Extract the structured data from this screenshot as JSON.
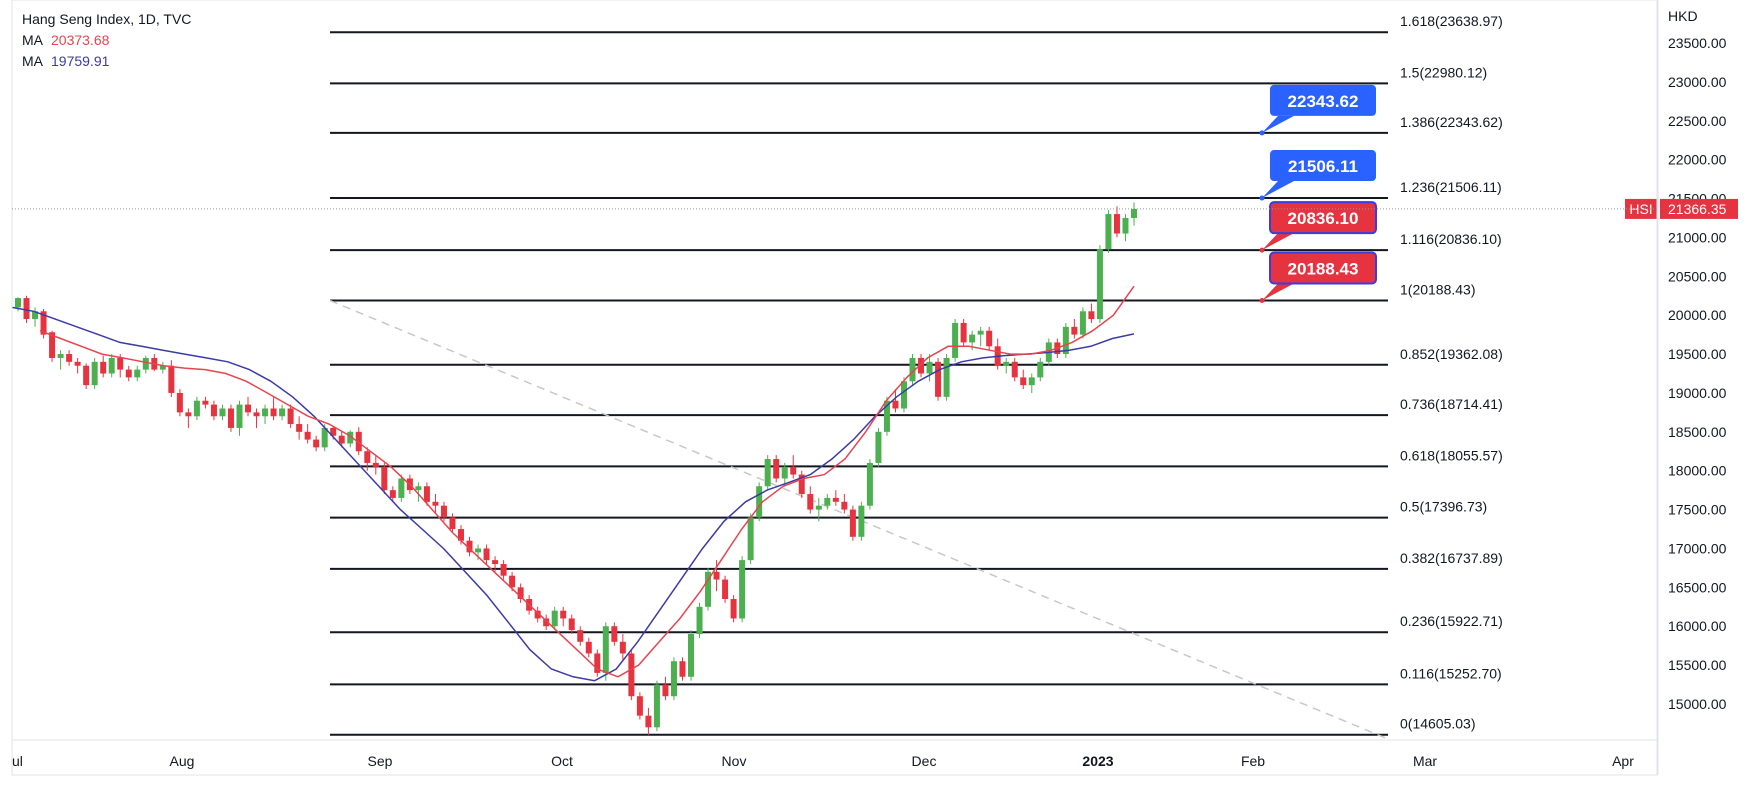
{
  "legend": {
    "title": "Hang Seng Index, 1D, TVC",
    "ma1_label": "MA",
    "ma1_value": "20373.68",
    "ma2_label": "MA",
    "ma2_value": "19759.91"
  },
  "colors": {
    "up": "#4caf50",
    "down": "#e5333f",
    "ma_fast": "#e5454f",
    "ma_slow": "#3b3ba8",
    "fib_line": "#131722",
    "callout_blue": "#2962ff",
    "callout_red": "#e5333f",
    "trend_dash": "#c8c8c8"
  },
  "axis": {
    "currency": "HKD",
    "current_symbol": "HSI",
    "current_price": "21366.35"
  },
  "chart_data": {
    "type": "candlestick",
    "title": "Hang Seng Index, 1D, TVC",
    "ylabel": "HKD",
    "ylim": [
      14500,
      23900
    ],
    "y_ticks": [
      "15000.00",
      "15500.00",
      "16000.00",
      "16500.00",
      "17000.00",
      "17500.00",
      "18000.00",
      "18500.00",
      "19000.00",
      "19500.00",
      "20000.00",
      "20500.00",
      "21000.00",
      "21500.00",
      "22000.00",
      "22500.00",
      "23000.00",
      "23500.00"
    ],
    "x_ticks": [
      "ul",
      "Aug",
      "Sep",
      "Oct",
      "Nov",
      "Dec",
      "2023",
      "Feb",
      "Mar",
      "Apr"
    ],
    "fib_levels": [
      {
        "label": "1.618(23638.97)",
        "value": 23638.97
      },
      {
        "label": "1.5(22980.12)",
        "value": 22980.12
      },
      {
        "label": "1.386(22343.62)",
        "value": 22343.62
      },
      {
        "label": "1.236(21506.11)",
        "value": 21506.11
      },
      {
        "label": "1.116(20836.10)",
        "value": 20836.1
      },
      {
        "label": "1(20188.43)",
        "value": 20188.43
      },
      {
        "label": "0.852(19362.08)",
        "value": 19362.08
      },
      {
        "label": "0.736(18714.41)",
        "value": 18714.41
      },
      {
        "label": "0.618(18055.57)",
        "value": 18055.57
      },
      {
        "label": "0.5(17396.73)",
        "value": 17396.73
      },
      {
        "label": "0.382(16737.89)",
        "value": 16737.89
      },
      {
        "label": "0.236(15922.71)",
        "value": 15922.71
      },
      {
        "label": "0.116(15252.70)",
        "value": 15252.7
      },
      {
        "label": "0(14605.03)",
        "value": 14605.03
      }
    ],
    "callouts": [
      {
        "text": "22343.62",
        "value": 22343.62,
        "color": "blue"
      },
      {
        "text": "21506.11",
        "value": 21506.11,
        "color": "blue"
      },
      {
        "text": "20836.10",
        "value": 20836.1,
        "color": "red"
      },
      {
        "text": "20188.43",
        "value": 20188.43,
        "color": "red"
      }
    ],
    "candles": [
      [
        20100,
        20230,
        20050,
        20220
      ],
      [
        20220,
        20250,
        19900,
        19950
      ],
      [
        19950,
        20100,
        19850,
        20050
      ],
      [
        20050,
        20080,
        19700,
        19750
      ],
      [
        19780,
        19800,
        19400,
        19450
      ],
      [
        19450,
        19550,
        19300,
        19500
      ],
      [
        19500,
        19550,
        19350,
        19400
      ],
      [
        19400,
        19450,
        19250,
        19350
      ],
      [
        19350,
        19380,
        19050,
        19100
      ],
      [
        19100,
        19450,
        19050,
        19400
      ],
      [
        19400,
        19480,
        19200,
        19250
      ],
      [
        19250,
        19500,
        19200,
        19450
      ],
      [
        19450,
        19500,
        19200,
        19300
      ],
      [
        19300,
        19350,
        19150,
        19200
      ],
      [
        19200,
        19350,
        19150,
        19300
      ],
      [
        19300,
        19480,
        19250,
        19450
      ],
      [
        19450,
        19500,
        19280,
        19300
      ],
      [
        19300,
        19400,
        19250,
        19350
      ],
      [
        19350,
        19420,
        18950,
        19000
      ],
      [
        19000,
        19050,
        18700,
        18750
      ],
      [
        18750,
        18800,
        18550,
        18700
      ],
      [
        18700,
        18950,
        18650,
        18900
      ],
      [
        18900,
        18950,
        18800,
        18850
      ],
      [
        18850,
        18900,
        18650,
        18700
      ],
      [
        18700,
        18850,
        18650,
        18800
      ],
      [
        18800,
        18850,
        18500,
        18550
      ],
      [
        18550,
        18900,
        18450,
        18850
      ],
      [
        18850,
        18950,
        18700,
        18750
      ],
      [
        18750,
        18800,
        18550,
        18700
      ],
      [
        18700,
        18850,
        18600,
        18800
      ],
      [
        18800,
        18950,
        18650,
        18700
      ],
      [
        18700,
        18850,
        18650,
        18800
      ],
      [
        18800,
        18850,
        18550,
        18600
      ],
      [
        18600,
        18700,
        18400,
        18500
      ],
      [
        18500,
        18600,
        18350,
        18400
      ],
      [
        18400,
        18450,
        18250,
        18300
      ],
      [
        18300,
        18600,
        18250,
        18550
      ],
      [
        18550,
        18570,
        18400,
        18450
      ],
      [
        18450,
        18500,
        18300,
        18350
      ],
      [
        18350,
        18520,
        18300,
        18500
      ],
      [
        18500,
        18560,
        18200,
        18250
      ],
      [
        18250,
        18300,
        18000,
        18100
      ],
      [
        18100,
        18200,
        17950,
        18050
      ],
      [
        18050,
        18100,
        17700,
        17750
      ],
      [
        17750,
        17800,
        17600,
        17650
      ],
      [
        17650,
        17950,
        17600,
        17900
      ],
      [
        17900,
        17950,
        17700,
        17750
      ],
      [
        17750,
        17850,
        17600,
        17800
      ],
      [
        17800,
        17850,
        17550,
        17600
      ],
      [
        17600,
        17700,
        17450,
        17550
      ],
      [
        17550,
        17600,
        17350,
        17400
      ],
      [
        17400,
        17450,
        17200,
        17250
      ],
      [
        17250,
        17300,
        17050,
        17100
      ],
      [
        17100,
        17150,
        16900,
        16950
      ],
      [
        16950,
        17050,
        16850,
        17000
      ],
      [
        17000,
        17050,
        16800,
        16850
      ],
      [
        16850,
        16900,
        16700,
        16800
      ],
      [
        16800,
        16850,
        16600,
        16650
      ],
      [
        16650,
        16700,
        16450,
        16500
      ],
      [
        16500,
        16550,
        16300,
        16350
      ],
      [
        16350,
        16400,
        16150,
        16200
      ],
      [
        16200,
        16250,
        16050,
        16100
      ],
      [
        16100,
        16150,
        15950,
        16000
      ],
      [
        16000,
        16250,
        15950,
        16200
      ],
      [
        16200,
        16250,
        16000,
        16100
      ],
      [
        16100,
        16150,
        15900,
        15950
      ],
      [
        15950,
        16000,
        15750,
        15800
      ],
      [
        15800,
        15850,
        15600,
        15650
      ],
      [
        15650,
        15700,
        15350,
        15400
      ],
      [
        15400,
        16050,
        15300,
        16000
      ],
      [
        16000,
        16050,
        15750,
        15800
      ],
      [
        15800,
        15900,
        15550,
        15650
      ],
      [
        15650,
        15700,
        15050,
        15100
      ],
      [
        15100,
        15150,
        14800,
        14850
      ],
      [
        14850,
        14950,
        14600,
        14700
      ],
      [
        14700,
        15300,
        14650,
        15250
      ],
      [
        15250,
        15350,
        15050,
        15100
      ],
      [
        15100,
        15600,
        15050,
        15550
      ],
      [
        15550,
        15600,
        15300,
        15350
      ],
      [
        15350,
        15950,
        15300,
        15900
      ],
      [
        15900,
        16300,
        15850,
        16250
      ],
      [
        16250,
        16750,
        16200,
        16700
      ],
      [
        16700,
        16850,
        16450,
        16600
      ],
      [
        16600,
        16650,
        16300,
        16350
      ],
      [
        16350,
        16400,
        16050,
        16100
      ],
      [
        16100,
        16900,
        16050,
        16850
      ],
      [
        16850,
        17450,
        16800,
        17400
      ],
      [
        17400,
        17850,
        17350,
        17800
      ],
      [
        17800,
        18200,
        17750,
        18150
      ],
      [
        18150,
        18200,
        17850,
        17900
      ],
      [
        17900,
        18100,
        17800,
        18050
      ],
      [
        18050,
        18200,
        17900,
        17950
      ],
      [
        17950,
        18000,
        17650,
        17700
      ],
      [
        17700,
        17800,
        17450,
        17500
      ],
      [
        17500,
        17650,
        17350,
        17550
      ],
      [
        17550,
        17700,
        17500,
        17650
      ],
      [
        17650,
        17750,
        17550,
        17600
      ],
      [
        17600,
        17700,
        17450,
        17500
      ],
      [
        17500,
        17550,
        17100,
        17150
      ],
      [
        17150,
        17600,
        17100,
        17550
      ],
      [
        17550,
        18150,
        17500,
        18100
      ],
      [
        18100,
        18550,
        18050,
        18500
      ],
      [
        18500,
        18950,
        18450,
        18900
      ],
      [
        18900,
        19050,
        18750,
        18800
      ],
      [
        18800,
        19200,
        18750,
        19150
      ],
      [
        19150,
        19500,
        19100,
        19450
      ],
      [
        19450,
        19500,
        19200,
        19250
      ],
      [
        19250,
        19500,
        19150,
        19400
      ],
      [
        19400,
        19450,
        18900,
        18950
      ],
      [
        18950,
        19500,
        18900,
        19450
      ],
      [
        19450,
        19950,
        19400,
        19900
      ],
      [
        19900,
        19950,
        19600,
        19650
      ],
      [
        19650,
        19800,
        19550,
        19750
      ],
      [
        19750,
        19850,
        19600,
        19800
      ],
      [
        19800,
        19850,
        19550,
        19600
      ],
      [
        19600,
        19700,
        19300,
        19350
      ],
      [
        19350,
        19450,
        19250,
        19400
      ],
      [
        19400,
        19450,
        19150,
        19200
      ],
      [
        19200,
        19300,
        19050,
        19100
      ],
      [
        19100,
        19250,
        19000,
        19200
      ],
      [
        19200,
        19450,
        19150,
        19400
      ],
      [
        19400,
        19700,
        19350,
        19650
      ],
      [
        19650,
        19700,
        19450,
        19500
      ],
      [
        19500,
        19900,
        19450,
        19850
      ],
      [
        19850,
        19950,
        19700,
        19750
      ],
      [
        19750,
        20100,
        19700,
        20050
      ],
      [
        20050,
        20150,
        19900,
        19950
      ],
      [
        19950,
        20900,
        19900,
        20850
      ],
      [
        20850,
        21350,
        20800,
        21300
      ],
      [
        21300,
        21400,
        21000,
        21050
      ],
      [
        21050,
        21300,
        20950,
        21250
      ],
      [
        21250,
        21450,
        21150,
        21366
      ]
    ],
    "ma_fast_values": [
      19800,
      19700,
      19600,
      19500,
      19450,
      19400,
      19350,
      19320,
      19300,
      19250,
      19150,
      19000,
      18850,
      18700,
      18600,
      18450,
      18250,
      18050,
      17800,
      17500,
      17200,
      16950,
      16700,
      16450,
      16200,
      15950,
      15700,
      15450,
      15350,
      15500,
      15800,
      16100,
      16450,
      16850,
      17250,
      17600,
      17800,
      17900,
      17950,
      18150,
      18500,
      18900,
      19200,
      19450,
      19600,
      19600,
      19550,
      19500,
      19500,
      19550,
      19650,
      19800,
      20000,
      20373
    ],
    "ma_slow_values": [
      20100,
      20050,
      19950,
      19850,
      19750,
      19650,
      19600,
      19550,
      19500,
      19450,
      19400,
      19300,
      19150,
      18950,
      18700,
      18400,
      18100,
      17800,
      17500,
      17250,
      17000,
      16700,
      16400,
      16050,
      15700,
      15450,
      15350,
      15300,
      15450,
      15800,
      16200,
      16600,
      17000,
      17350,
      17600,
      17750,
      17850,
      17950,
      18150,
      18400,
      18700,
      18950,
      19150,
      19300,
      19400,
      19450,
      19480,
      19500,
      19520,
      19550,
      19600,
      19700,
      19759
    ]
  }
}
